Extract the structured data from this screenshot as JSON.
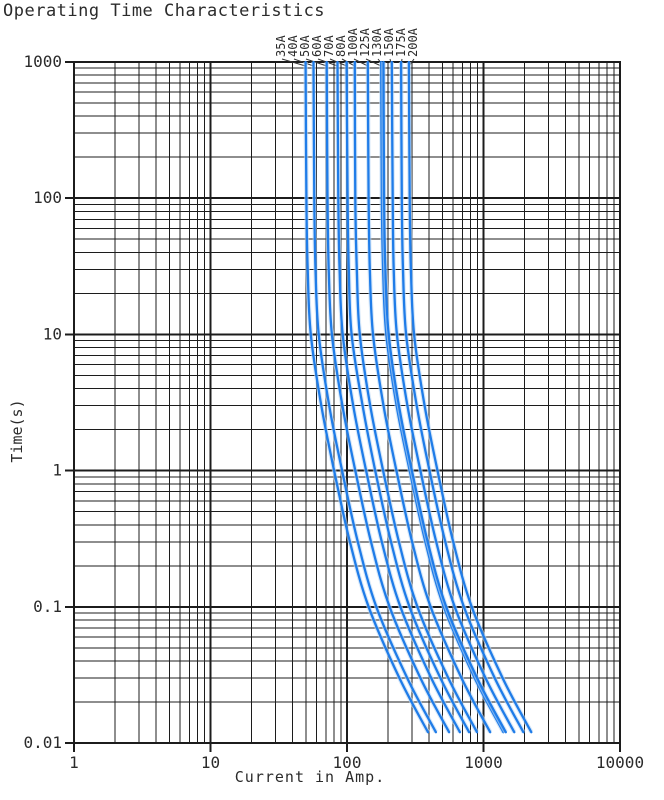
{
  "chart_data": {
    "type": "line",
    "title": "Operating Time Characteristics",
    "xlabel": "Current in Amp.",
    "ylabel": "Time(s)",
    "x_scale": "log",
    "y_scale": "log",
    "xlim": [
      1,
      10000
    ],
    "ylim": [
      0.01,
      1000
    ],
    "grid": "log major+minor, black",
    "legend_position": "labels-above-plot",
    "x_ticks": [
      {
        "value": 1,
        "label": "1"
      },
      {
        "value": 10,
        "label": "10"
      },
      {
        "value": 100,
        "label": "100"
      },
      {
        "value": 1000,
        "label": "1000"
      },
      {
        "value": 10000,
        "label": "10000"
      }
    ],
    "y_ticks": [
      {
        "value": 1000,
        "label": "1000"
      },
      {
        "value": 100,
        "label": "100"
      },
      {
        "value": 10,
        "label": "10"
      },
      {
        "value": 1,
        "label": "1"
      },
      {
        "value": 0.1,
        "label": "0.1"
      },
      {
        "value": 0.01,
        "label": "0.01"
      }
    ],
    "colors": {
      "curve": "#1f7ce8",
      "curve_halo": "#bdd8f5",
      "grid": "#1c1c1c",
      "text": "#2b2b2b"
    },
    "series": [
      {
        "name": "35A",
        "rating": 35,
        "points": [
          [
            49.7,
            1000
          ],
          [
            50.4,
            100
          ],
          [
            51.5,
            30
          ],
          [
            54.3,
            10
          ],
          [
            64.8,
            3
          ],
          [
            80.5,
            1
          ],
          [
            105,
            0.3
          ],
          [
            144,
            0.1
          ],
          [
            242,
            0.03
          ],
          [
            392,
            0.012
          ]
        ]
      },
      {
        "name": "40A",
        "rating": 40,
        "points": [
          [
            56.8,
            1000
          ],
          [
            57.6,
            100
          ],
          [
            58.8,
            30
          ],
          [
            62,
            10
          ],
          [
            74,
            3
          ],
          [
            92,
            1
          ],
          [
            120,
            0.3
          ],
          [
            164,
            0.1
          ],
          [
            276,
            0.03
          ],
          [
            448,
            0.012
          ]
        ]
      },
      {
        "name": "50A",
        "rating": 50,
        "points": [
          [
            71,
            1000
          ],
          [
            72,
            100
          ],
          [
            73.5,
            30
          ],
          [
            77.5,
            10
          ],
          [
            92.5,
            3
          ],
          [
            115,
            1
          ],
          [
            150,
            0.3
          ],
          [
            205,
            0.1
          ],
          [
            345,
            0.03
          ],
          [
            560,
            0.012
          ]
        ]
      },
      {
        "name": "60A",
        "rating": 60,
        "points": [
          [
            85.2,
            1000
          ],
          [
            86.4,
            100
          ],
          [
            88.2,
            30
          ],
          [
            93,
            10
          ],
          [
            111,
            3
          ],
          [
            138,
            1
          ],
          [
            180,
            0.3
          ],
          [
            246,
            0.1
          ],
          [
            414,
            0.03
          ],
          [
            672,
            0.012
          ]
        ]
      },
      {
        "name": "70A",
        "rating": 70,
        "points": [
          [
            99.4,
            1000
          ],
          [
            101,
            100
          ],
          [
            103,
            30
          ],
          [
            108,
            10
          ],
          [
            130,
            3
          ],
          [
            161,
            1
          ],
          [
            210,
            0.3
          ],
          [
            287,
            0.1
          ],
          [
            483,
            0.03
          ],
          [
            784,
            0.012
          ]
        ]
      },
      {
        "name": "80A",
        "rating": 80,
        "points": [
          [
            114,
            1000
          ],
          [
            115,
            100
          ],
          [
            118,
            30
          ],
          [
            124,
            10
          ],
          [
            148,
            3
          ],
          [
            184,
            1
          ],
          [
            240,
            0.3
          ],
          [
            328,
            0.1
          ],
          [
            552,
            0.03
          ],
          [
            896,
            0.012
          ]
        ]
      },
      {
        "name": "100A",
        "rating": 100,
        "points": [
          [
            142,
            1000
          ],
          [
            144,
            100
          ],
          [
            147,
            30
          ],
          [
            155,
            10
          ],
          [
            185,
            3
          ],
          [
            230,
            1
          ],
          [
            300,
            0.3
          ],
          [
            410,
            0.1
          ],
          [
            690,
            0.03
          ],
          [
            1120,
            0.012
          ]
        ]
      },
      {
        "name": "125A",
        "rating": 125,
        "points": [
          [
            178,
            1000
          ],
          [
            180,
            100
          ],
          [
            184,
            30
          ],
          [
            194,
            10
          ],
          [
            231,
            3
          ],
          [
            288,
            1
          ],
          [
            375,
            0.3
          ],
          [
            512,
            0.1
          ],
          [
            862,
            0.03
          ],
          [
            1400,
            0.012
          ]
        ]
      },
      {
        "name": "130A",
        "rating": 130,
        "points": [
          [
            185,
            1000
          ],
          [
            187,
            100
          ],
          [
            191,
            30
          ],
          [
            202,
            10
          ],
          [
            240,
            3
          ],
          [
            299,
            1
          ],
          [
            390,
            0.3
          ],
          [
            533,
            0.1
          ],
          [
            897,
            0.03
          ],
          [
            1456,
            0.012
          ]
        ]
      },
      {
        "name": "150A",
        "rating": 150,
        "points": [
          [
            213,
            1000
          ],
          [
            216,
            100
          ],
          [
            220,
            30
          ],
          [
            232,
            10
          ],
          [
            277,
            3
          ],
          [
            345,
            1
          ],
          [
            450,
            0.3
          ],
          [
            615,
            0.1
          ],
          [
            1035,
            0.03
          ],
          [
            1680,
            0.012
          ]
        ]
      },
      {
        "name": "175A",
        "rating": 175,
        "points": [
          [
            249,
            1000
          ],
          [
            252,
            100
          ],
          [
            257,
            30
          ],
          [
            271,
            10
          ],
          [
            324,
            3
          ],
          [
            402,
            1
          ],
          [
            525,
            0.3
          ],
          [
            718,
            0.1
          ],
          [
            1208,
            0.03
          ],
          [
            1960,
            0.012
          ]
        ]
      },
      {
        "name": "200A",
        "rating": 200,
        "points": [
          [
            284,
            1000
          ],
          [
            288,
            100
          ],
          [
            294,
            30
          ],
          [
            310,
            10
          ],
          [
            370,
            3
          ],
          [
            460,
            1
          ],
          [
            600,
            0.3
          ],
          [
            820,
            0.1
          ],
          [
            1380,
            0.03
          ],
          [
            2240,
            0.012
          ]
        ]
      }
    ]
  }
}
